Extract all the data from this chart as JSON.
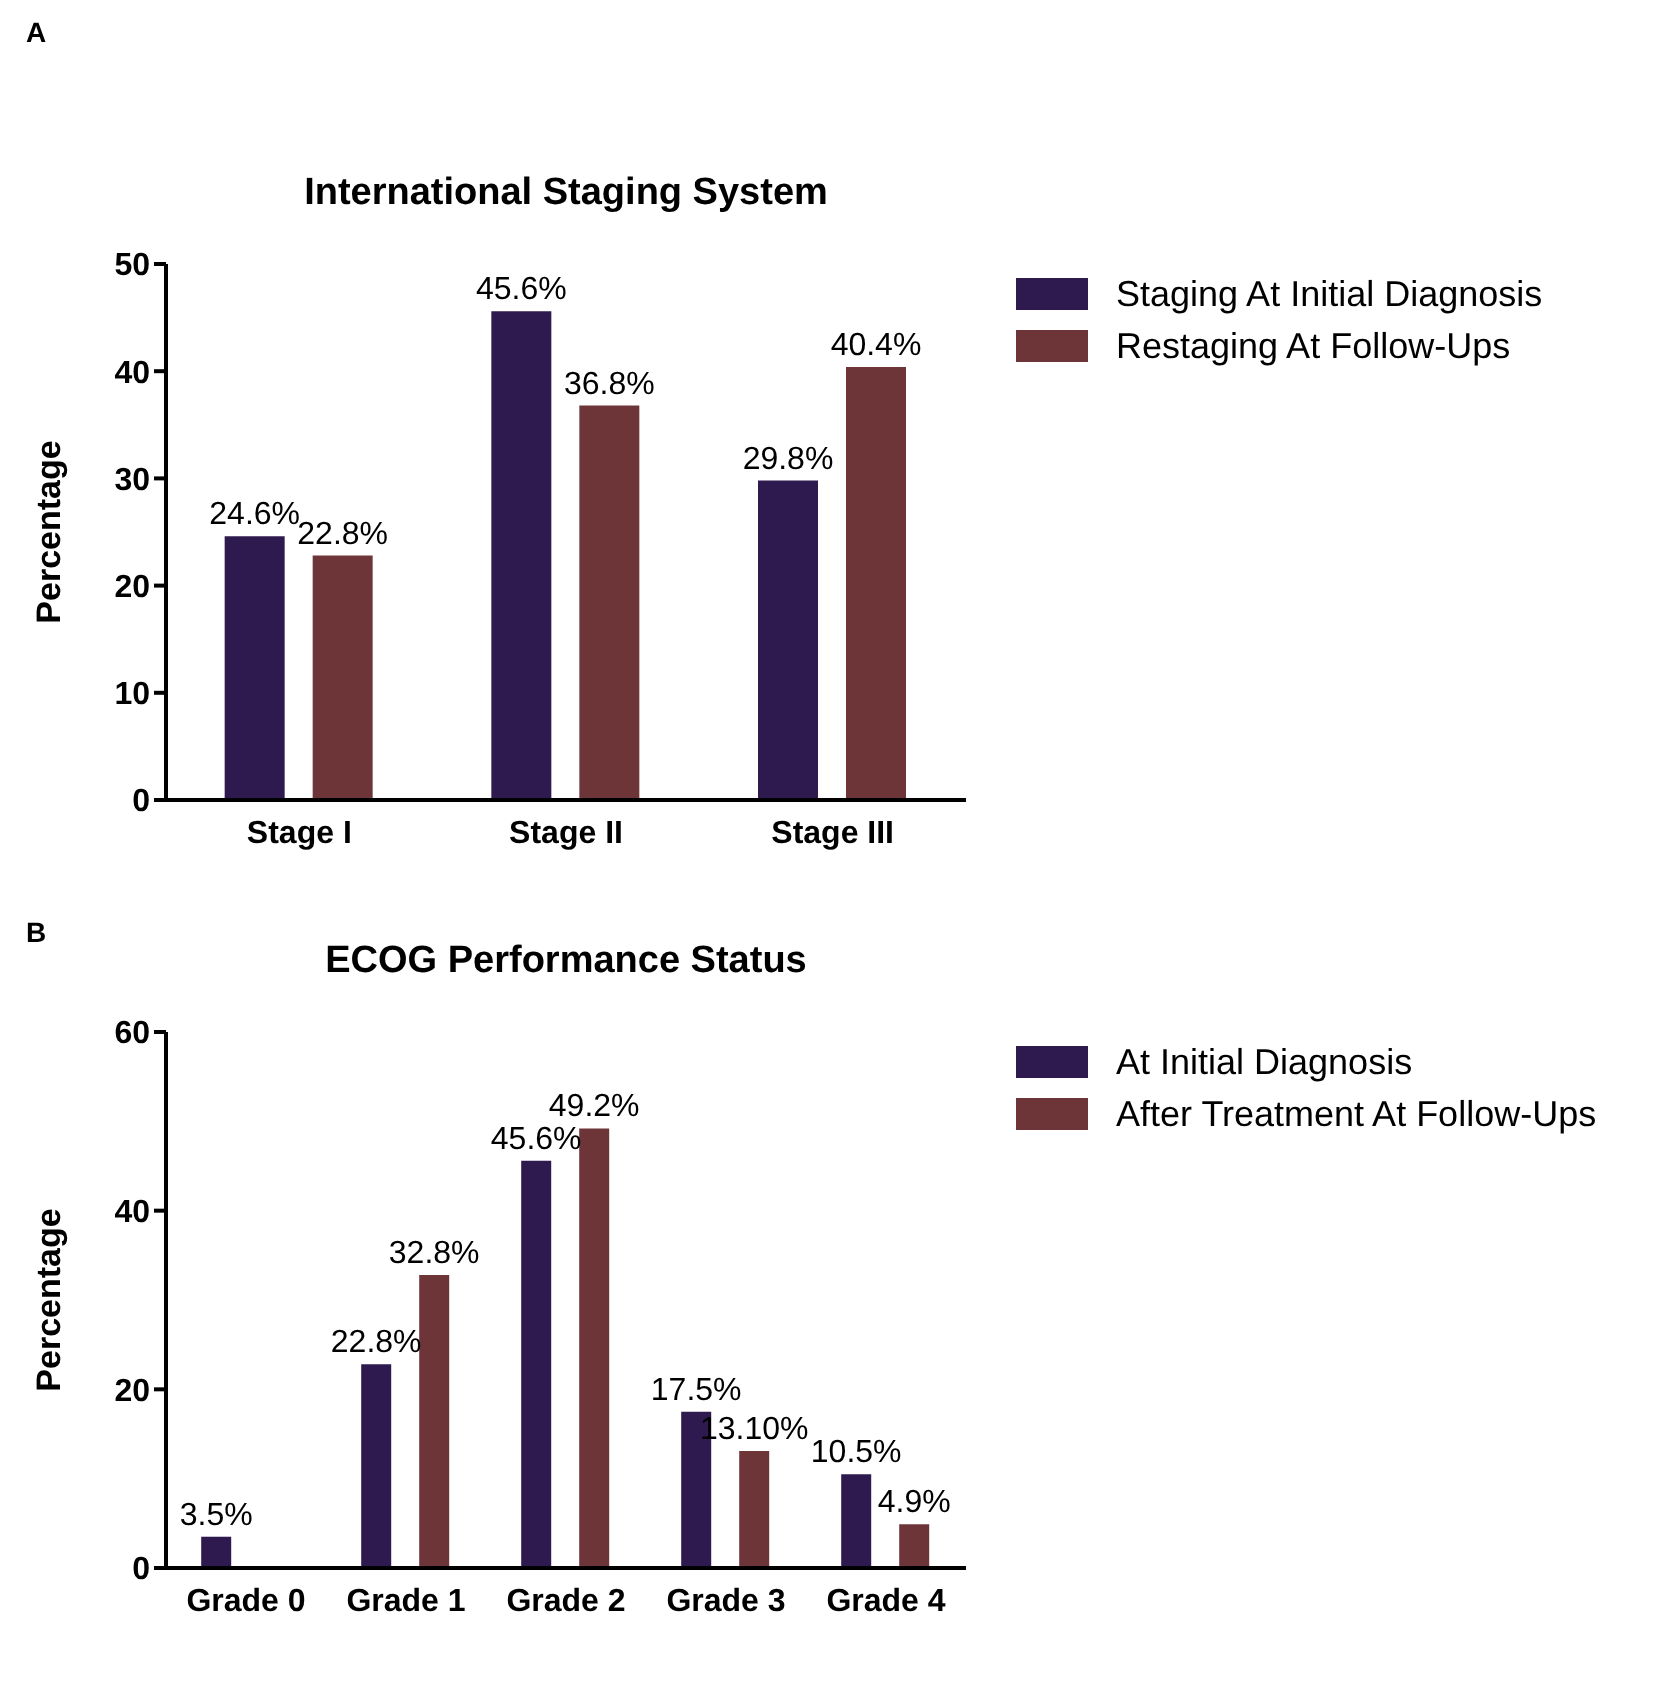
{
  "chart_data": [
    {
      "type": "bar",
      "title": "International Staging System",
      "ylabel": "Percentage",
      "annotations": [
        "A"
      ],
      "categories": [
        "Stage I",
        "Stage II",
        "Stage III"
      ],
      "series": [
        {
          "name": "Staging At Initial Diagnosis",
          "color": "#2e1a4f",
          "values": [
            24.6,
            45.6,
            29.8
          ],
          "value_labels": [
            "24.6%",
            "45.6%",
            "29.8%"
          ]
        },
        {
          "name": "Restaging At Follow-Ups",
          "color": "#6e3538",
          "values": [
            22.8,
            36.8,
            40.4
          ],
          "value_labels": [
            "22.8%",
            "36.8%",
            "40.4%"
          ]
        }
      ],
      "ylim": [
        0,
        50
      ],
      "yticks": [
        0,
        10,
        20,
        30,
        40,
        50
      ],
      "grid": false,
      "legend": "top right"
    },
    {
      "type": "bar",
      "title": "ECOG Performance Status",
      "ylabel": "Percentage",
      "annotations": [
        "B"
      ],
      "categories": [
        "Grade 0",
        "Grade 1",
        "Grade 2",
        "Grade 3",
        "Grade 4"
      ],
      "series": [
        {
          "name": "At Initial Diagnosis",
          "color": "#2e1a4f",
          "values": [
            3.5,
            22.8,
            45.6,
            17.5,
            10.5
          ],
          "value_labels": [
            "3.5%",
            "22.8%",
            "45.6%",
            "17.5%",
            "10.5%"
          ]
        },
        {
          "name": "After Treatment At Follow-Ups",
          "color": "#6e3538",
          "values": [
            null,
            32.8,
            49.2,
            13.1,
            4.9
          ],
          "value_labels": [
            null,
            "32.8%",
            "49.2%",
            "13.10%",
            "4.9%"
          ]
        }
      ],
      "ylim": [
        0,
        60
      ],
      "yticks": [
        0,
        20,
        40,
        60
      ],
      "grid": false,
      "legend": "top right"
    }
  ]
}
